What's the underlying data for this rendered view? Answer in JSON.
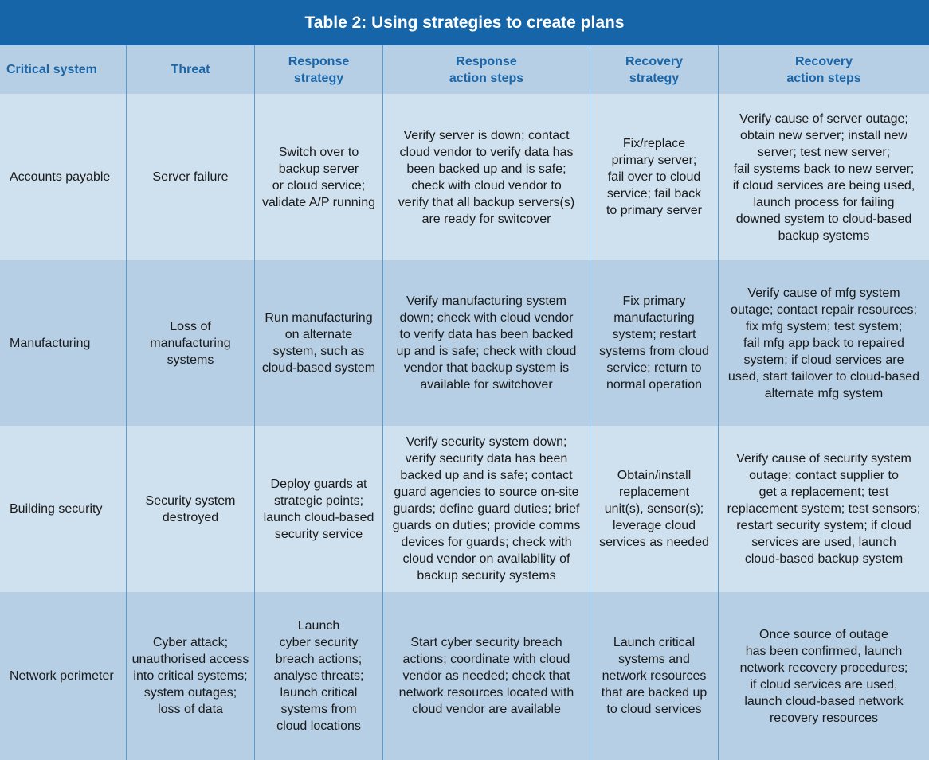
{
  "header": {
    "title": "Table 2: Using strategies to create plans"
  },
  "table": {
    "columns": [
      [
        "Critical system"
      ],
      [
        "Threat"
      ],
      [
        "Response",
        "strategy"
      ],
      [
        "Response",
        "action steps"
      ],
      [
        "Recovery",
        "strategy"
      ],
      [
        "Recovery",
        "action steps"
      ]
    ],
    "rows": [
      [
        [
          "Accounts payable"
        ],
        [
          "Server failure"
        ],
        [
          "Switch over to",
          "backup server",
          "or cloud service;",
          "validate A/P running"
        ],
        [
          "Verify server is down; contact",
          "cloud vendor to verify data has",
          "been backed up and is safe;",
          "check with cloud vendor to",
          "verify that all backup servers(s)",
          "are ready for switcover"
        ],
        [
          "Fix/replace",
          "primary server;",
          "fail over to cloud",
          "service; fail back",
          "to primary server"
        ],
        [
          "Verify cause of server outage;",
          "obtain new server; install new",
          "server; test new server;",
          "fail systems back to new server;",
          "if cloud services are being used,",
          "launch process for failing",
          "downed system to cloud-based",
          "backup systems"
        ]
      ],
      [
        [
          "Manufacturing"
        ],
        [
          "Loss of",
          "manufacturing",
          "systems"
        ],
        [
          "Run manufacturing",
          "on alternate",
          "system, such as",
          "cloud-based system"
        ],
        [
          "Verify manufacturing system",
          "down; check with cloud vendor",
          "to verify data has been backed",
          "up and is safe; check with cloud",
          "vendor that backup system is",
          "available for switchover"
        ],
        [
          "Fix primary",
          "manufacturing",
          "system; restart",
          "systems from cloud",
          "service; return to",
          "normal operation"
        ],
        [
          "Verify cause of mfg system",
          "outage; contact repair resources;",
          "fix mfg system; test system;",
          "fail mfg app back to repaired",
          "system; if cloud services are",
          "used, start failover to cloud-based",
          "alternate mfg system"
        ]
      ],
      [
        [
          "Building security"
        ],
        [
          "Security system",
          "destroyed"
        ],
        [
          "Deploy guards at",
          "strategic points;",
          "launch cloud-based",
          "security service"
        ],
        [
          "Verify security system down;",
          "verify security data has been",
          "backed up and is safe; contact",
          "guard agencies to source on-site",
          "guards; define guard duties; brief",
          "guards on duties; provide comms",
          "devices for guards; check with",
          "cloud vendor on availability of",
          "backup security systems"
        ],
        [
          "Obtain/install",
          "replacement",
          "unit(s), sensor(s);",
          "leverage cloud",
          "services as needed"
        ],
        [
          "Verify cause of security system",
          "outage; contact supplier to",
          "get a replacement; test",
          "replacement system; test sensors;",
          "restart security system; if cloud",
          "services are used, launch",
          "cloud-based backup system"
        ]
      ],
      [
        [
          "Network perimeter"
        ],
        [
          "Cyber attack;",
          "unauthorised access",
          "into critical systems;",
          "system outages;",
          "loss of data"
        ],
        [
          "Launch",
          "cyber security",
          "breach actions;",
          "analyse threats;",
          "launch critical",
          "systems from",
          "cloud locations"
        ],
        [
          "Start cyber security breach",
          "actions; coordinate with cloud",
          "vendor as needed; check that",
          "network resources located with",
          "cloud vendor are available"
        ],
        [
          "Launch critical",
          "systems and",
          "network resources",
          "that are backed up",
          "to cloud services"
        ],
        [
          "Once source of outage",
          "has been confirmed, launch",
          "network recovery procedures;",
          "if cloud services are used,",
          "launch cloud-based network",
          "recovery resources"
        ]
      ]
    ]
  }
}
